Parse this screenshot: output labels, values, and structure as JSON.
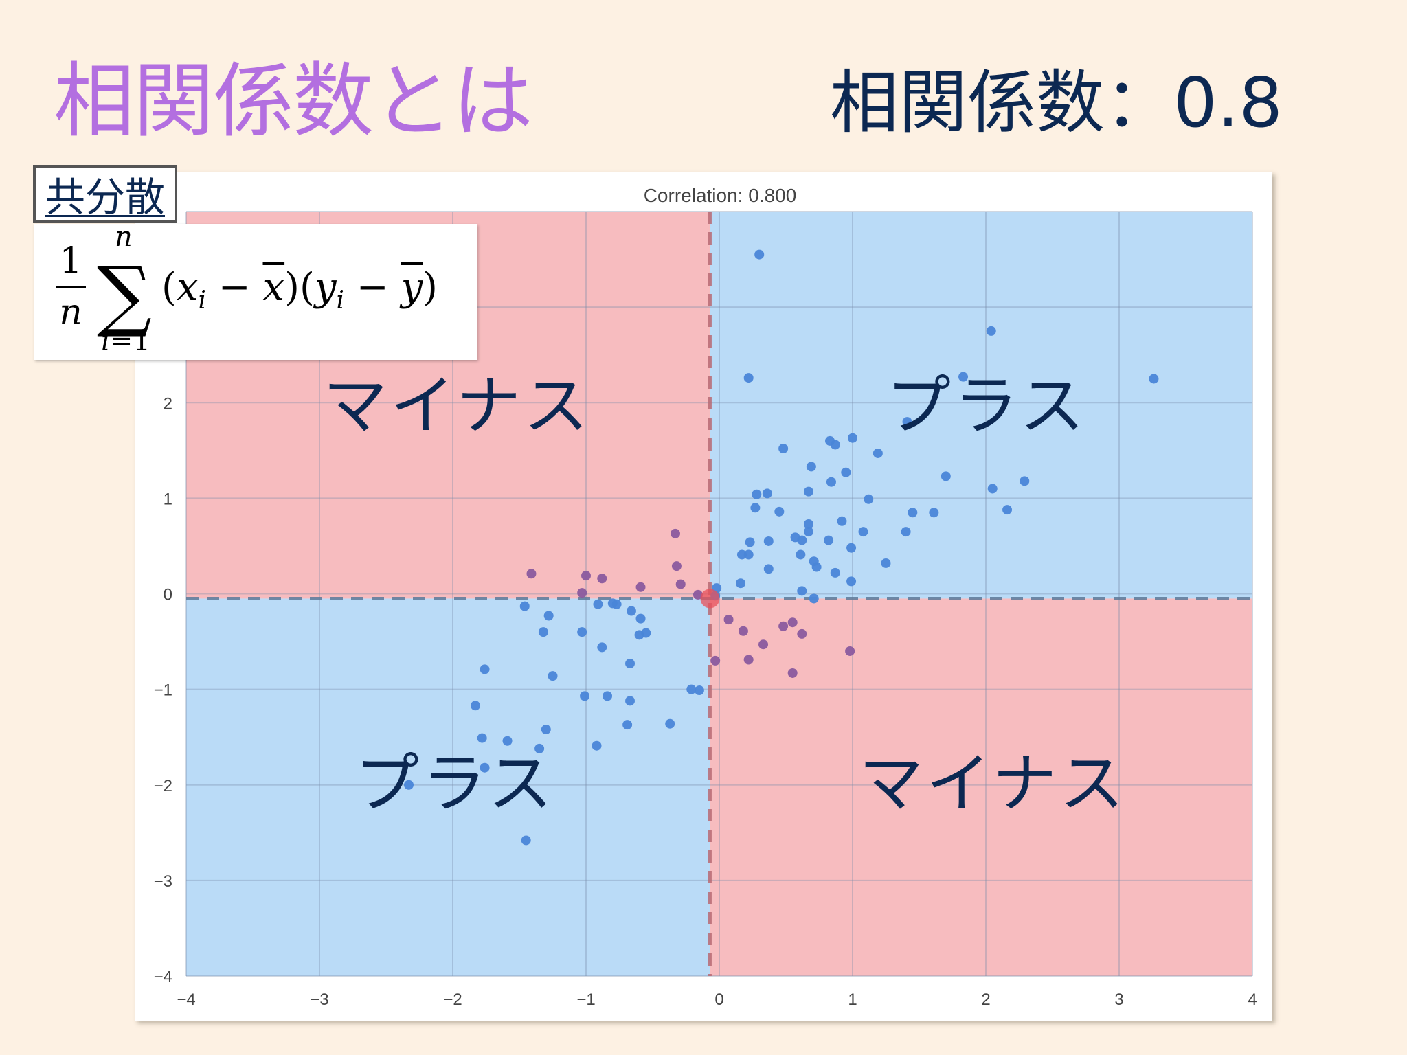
{
  "slide": {
    "title": "相関係数とは",
    "correlation_heading": "相関係数：0.8",
    "covariance_tag": "共分散",
    "formula": {
      "numerator": "1",
      "denominator": "n",
      "sum_upper": "n",
      "sum_lower_var": "i",
      "sum_lower_rest": "=1",
      "sigma": "∑",
      "open1": "(",
      "x_var": "x",
      "x_sub": "i",
      "minus1": " − ",
      "x_bar": "x",
      "close1": ")",
      "open2": "(",
      "y_var": "y",
      "y_sub": "i",
      "minus2": " − ",
      "y_bar": "y",
      "close2": ")"
    },
    "quadrant_labels": {
      "top_left": "マイナス",
      "top_right": "プラス",
      "bottom_left": "プラス",
      "bottom_right": "マイナス"
    }
  },
  "colors": {
    "background": "#fdf1e3",
    "title": "#b36fe0",
    "text_dark": "#0c2852",
    "positive_region": "#badbf7",
    "negative_region": "#f7bcbf",
    "point": "#4a86d8",
    "point_negative": "#8a5a9e",
    "mean_line_blue": "#5d7a9a",
    "mean_line_red": "#b86a74",
    "grid_blue": "#9dbedc",
    "grid_red": "#dca0a6"
  },
  "chart_data": {
    "type": "scatter",
    "title": "Correlation: 0.800",
    "xlabel": "",
    "ylabel": "",
    "xlim": [
      -4,
      4
    ],
    "ylim": [
      -4,
      4
    ],
    "grid": true,
    "x_ticks": [
      "−4",
      "−3",
      "−2",
      "−1",
      "0",
      "1",
      "2",
      "3",
      "4"
    ],
    "y_ticks": [
      "−4",
      "−3",
      "−2",
      "−1",
      "0",
      "1",
      "2"
    ],
    "mean_x": -0.07,
    "mean_y": -0.05,
    "quadrant_shading": {
      "top_left": "negative",
      "top_right": "positive",
      "bottom_left": "positive",
      "bottom_right": "negative"
    },
    "correlation": 0.8,
    "points": [
      [
        0.3,
        3.55
      ],
      [
        2.04,
        2.75
      ],
      [
        0.22,
        2.26
      ],
      [
        1.83,
        2.27
      ],
      [
        3.26,
        2.25
      ],
      [
        1.41,
        1.8
      ],
      [
        0.48,
        1.52
      ],
      [
        0.83,
        1.6
      ],
      [
        0.87,
        1.56
      ],
      [
        1.0,
        1.63
      ],
      [
        1.19,
        1.47
      ],
      [
        0.69,
        1.33
      ],
      [
        0.95,
        1.27
      ],
      [
        1.7,
        1.23
      ],
      [
        2.29,
        1.18
      ],
      [
        0.84,
        1.17
      ],
      [
        0.67,
        1.07
      ],
      [
        2.05,
        1.1
      ],
      [
        0.28,
        1.04
      ],
      [
        0.36,
        1.05
      ],
      [
        1.12,
        0.99
      ],
      [
        0.27,
        0.9
      ],
      [
        0.45,
        0.86
      ],
      [
        2.16,
        0.88
      ],
      [
        1.45,
        0.85
      ],
      [
        1.61,
        0.85
      ],
      [
        0.67,
        0.73
      ],
      [
        0.92,
        0.76
      ],
      [
        0.67,
        0.65
      ],
      [
        1.08,
        0.65
      ],
      [
        1.4,
        0.65
      ],
      [
        0.57,
        0.59
      ],
      [
        0.62,
        0.56
      ],
      [
        0.82,
        0.56
      ],
      [
        0.37,
        0.55
      ],
      [
        0.23,
        0.54
      ],
      [
        0.99,
        0.48
      ],
      [
        0.17,
        0.41
      ],
      [
        0.22,
        0.41
      ],
      [
        0.61,
        0.41
      ],
      [
        0.71,
        0.34
      ],
      [
        0.73,
        0.28
      ],
      [
        0.37,
        0.26
      ],
      [
        0.87,
        0.22
      ],
      [
        1.25,
        0.32
      ],
      [
        0.99,
        0.13
      ],
      [
        0.16,
        0.11
      ],
      [
        0.62,
        0.03
      ],
      [
        0.71,
        -0.05
      ],
      [
        -0.02,
        0.06
      ],
      [
        -0.03,
        -0.02
      ],
      [
        -0.33,
        0.63
      ],
      [
        -0.32,
        0.29
      ],
      [
        -0.29,
        0.1
      ],
      [
        -1.41,
        0.21
      ],
      [
        -1.0,
        0.19
      ],
      [
        -0.88,
        0.16
      ],
      [
        -0.59,
        0.07
      ],
      [
        -1.03,
        0.01
      ],
      [
        -0.16,
        -0.01
      ],
      [
        0.07,
        -0.27
      ],
      [
        0.18,
        -0.39
      ],
      [
        0.33,
        -0.53
      ],
      [
        0.48,
        -0.34
      ],
      [
        0.55,
        -0.3
      ],
      [
        0.62,
        -0.42
      ],
      [
        0.22,
        -0.69
      ],
      [
        0.55,
        -0.83
      ],
      [
        0.98,
        -0.6
      ],
      [
        -0.03,
        -0.7
      ],
      [
        -1.46,
        -0.13
      ],
      [
        -1.28,
        -0.23
      ],
      [
        -1.32,
        -0.4
      ],
      [
        -1.03,
        -0.4
      ],
      [
        -0.91,
        -0.11
      ],
      [
        -0.77,
        -0.11
      ],
      [
        -0.8,
        -0.1
      ],
      [
        -0.66,
        -0.18
      ],
      [
        -0.59,
        -0.26
      ],
      [
        -0.6,
        -0.43
      ],
      [
        -0.55,
        -0.41
      ],
      [
        -0.88,
        -0.56
      ],
      [
        -0.67,
        -0.73
      ],
      [
        -1.25,
        -0.86
      ],
      [
        -1.76,
        -0.79
      ],
      [
        -0.15,
        -1.01
      ],
      [
        -0.21,
        -1.0
      ],
      [
        -1.01,
        -1.07
      ],
      [
        -0.84,
        -1.07
      ],
      [
        -0.67,
        -1.12
      ],
      [
        -1.83,
        -1.17
      ],
      [
        -1.3,
        -1.42
      ],
      [
        -1.78,
        -1.51
      ],
      [
        -1.59,
        -1.54
      ],
      [
        -1.35,
        -1.62
      ],
      [
        -0.92,
        -1.59
      ],
      [
        -0.69,
        -1.37
      ],
      [
        -0.37,
        -1.36
      ],
      [
        -1.76,
        -1.82
      ],
      [
        -2.33,
        -2.0
      ],
      [
        -1.45,
        -2.58
      ]
    ]
  }
}
